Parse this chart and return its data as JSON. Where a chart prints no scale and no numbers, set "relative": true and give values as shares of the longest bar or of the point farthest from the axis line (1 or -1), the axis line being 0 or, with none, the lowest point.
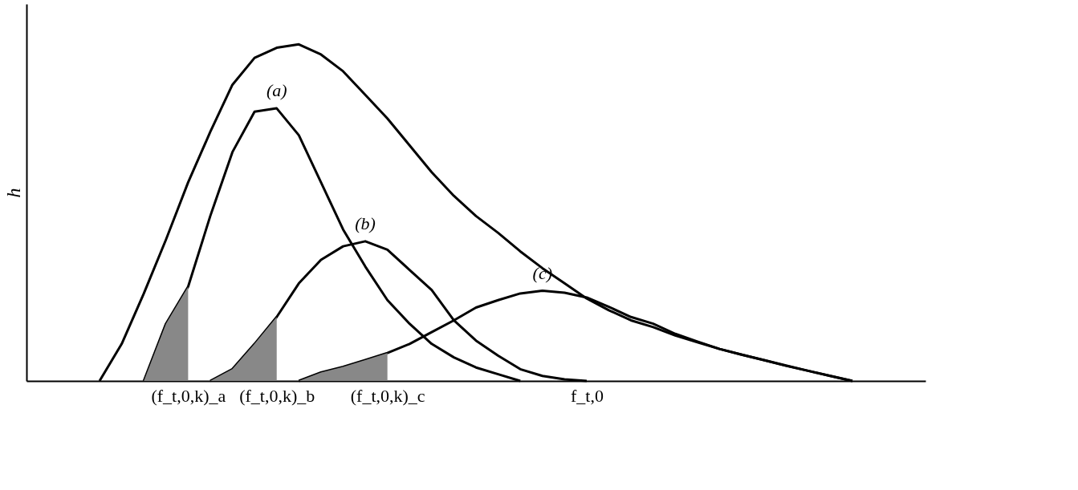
{
  "chart_data": {
    "type": "line",
    "relative": true,
    "ylabel": "h",
    "grid": false,
    "marker": "none",
    "line_style": "solid",
    "categories": [
      null,
      null,
      null,
      null,
      null,
      null,
      null,
      "(f_t,0,k)_a",
      null,
      null,
      null,
      "(f_t,0,k)_b",
      null,
      null,
      null,
      null,
      "(f_t,0,k)_c",
      null,
      null,
      null,
      null,
      null,
      null,
      null,
      null,
      "f_t,0",
      null,
      null,
      null,
      null,
      null,
      null,
      null,
      null,
      null,
      null,
      null,
      null,
      null,
      null,
      null
    ],
    "series": [
      {
        "color": "#000000",
        "values": [
          null,
          null,
          null,
          0,
          0.11,
          0.26,
          0.42,
          0.59,
          0.74,
          0.88,
          0.96,
          0.99,
          1,
          0.97,
          0.92,
          0.85,
          0.78,
          0.7,
          0.62,
          0.55,
          0.49,
          0.44,
          0.385,
          0.335,
          0.29,
          0.245,
          0.21,
          0.18,
          0.16,
          0.135,
          0.115,
          0.095,
          0.078,
          0.062,
          0.046,
          0.03,
          0.015,
          0,
          null,
          null,
          null
        ]
      },
      {
        "name": "(a)",
        "color": "#000000",
        "values": [
          null,
          null,
          null,
          null,
          null,
          0,
          0.17,
          0.28,
          0.49,
          0.68,
          0.8,
          0.81,
          0.73,
          0.59,
          0.45,
          0.34,
          0.24,
          0.17,
          0.11,
          0.07,
          0.04,
          0.02,
          0,
          null,
          null,
          null,
          null,
          null,
          null,
          null,
          null,
          null,
          null,
          null,
          null,
          null,
          null,
          null,
          null,
          null,
          null
        ]
      },
      {
        "name": "(b)",
        "color": "#000000",
        "values": [
          null,
          null,
          null,
          null,
          null,
          null,
          null,
          null,
          0,
          0.035,
          0.11,
          0.19,
          0.29,
          0.36,
          0.4,
          0.415,
          0.39,
          0.33,
          0.27,
          0.18,
          0.12,
          0.075,
          0.035,
          0.015,
          0.005,
          0,
          null,
          null,
          null,
          null,
          null,
          null,
          null,
          null,
          null,
          null,
          null,
          null,
          null,
          null,
          null
        ]
      },
      {
        "name": "(c)",
        "color": "#000000",
        "values": [
          null,
          null,
          null,
          null,
          null,
          null,
          null,
          null,
          null,
          null,
          null,
          null,
          0,
          0.025,
          0.042,
          0.062,
          0.083,
          0.11,
          0.145,
          0.18,
          0.218,
          0.24,
          0.26,
          0.268,
          0.262,
          0.248,
          0.22,
          0.19,
          0.17,
          0.14,
          0.117,
          0.095,
          0.078,
          0.062,
          0.045,
          0.03,
          0.015,
          0,
          null,
          null,
          null
        ]
      },
      {
        "type": "area",
        "color": "#888888",
        "values": [
          null,
          null,
          null,
          null,
          null,
          0,
          0.17,
          0.28,
          null,
          null,
          null,
          null,
          null,
          null,
          null,
          null,
          null,
          null,
          null,
          null,
          null,
          null,
          null,
          null,
          null,
          null,
          null,
          null,
          null,
          null,
          null,
          null,
          null,
          null,
          null,
          null,
          null,
          null,
          null,
          null,
          null
        ]
      },
      {
        "type": "area",
        "color": "#888888",
        "values": [
          null,
          null,
          null,
          null,
          null,
          null,
          null,
          null,
          0,
          0.035,
          0.11,
          0.19,
          null,
          null,
          null,
          null,
          null,
          null,
          null,
          null,
          null,
          null,
          null,
          null,
          null,
          null,
          null,
          null,
          null,
          null,
          null,
          null,
          null,
          null,
          null,
          null,
          null,
          null,
          null,
          null,
          null
        ]
      },
      {
        "type": "area",
        "color": "#888888",
        "values": [
          null,
          null,
          null,
          null,
          null,
          null,
          null,
          null,
          null,
          null,
          null,
          null,
          0,
          0.025,
          0.042,
          0.062,
          0.083,
          null,
          null,
          null,
          null,
          null,
          null,
          null,
          null,
          null,
          null,
          null,
          null,
          null,
          null,
          null,
          null,
          null,
          null,
          null,
          null,
          null,
          null,
          null,
          null
        ]
      }
    ]
  }
}
